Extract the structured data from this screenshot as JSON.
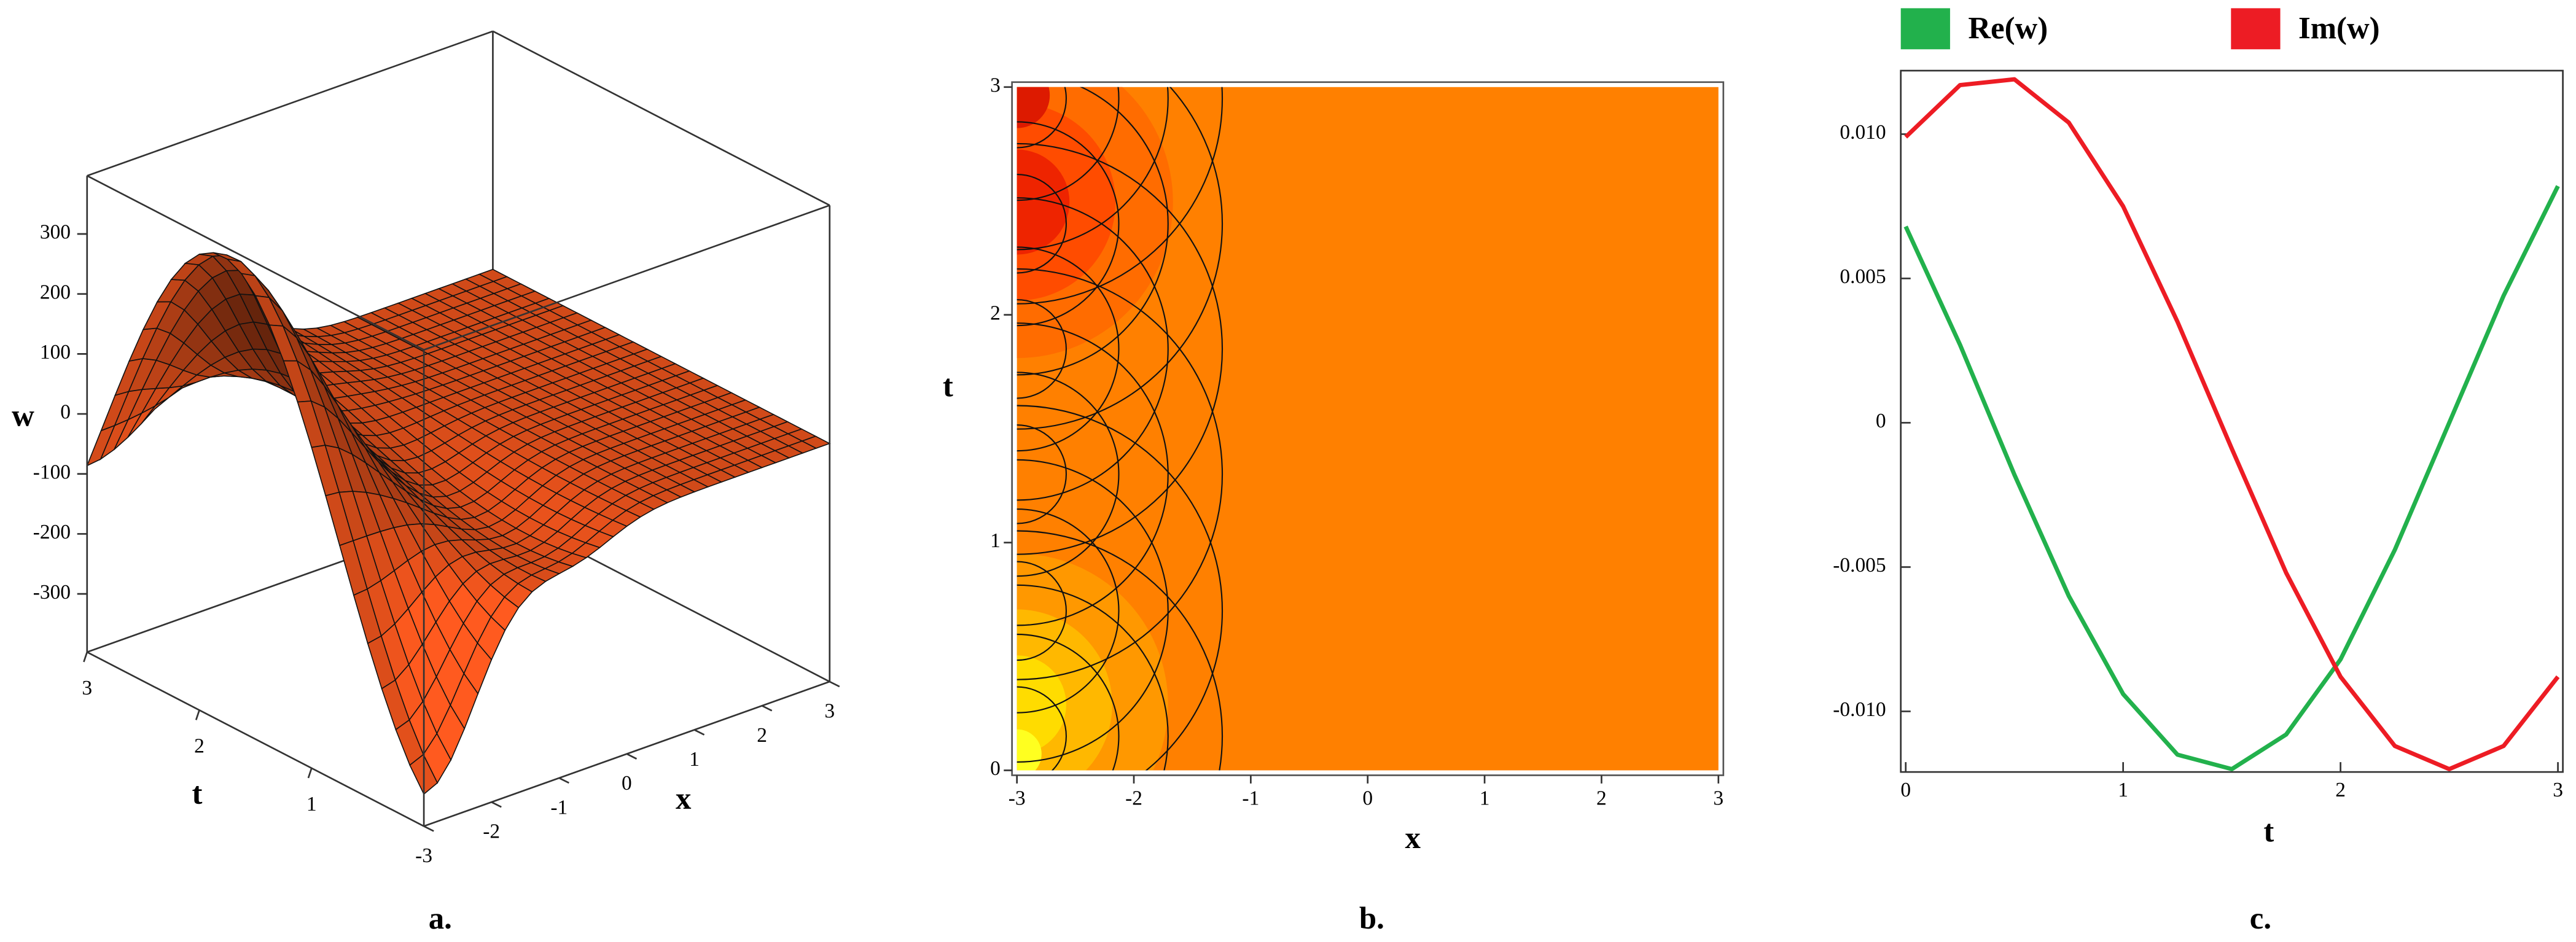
{
  "chart_data": [
    {
      "type": "surface",
      "caption": "a.",
      "xlabel": "x",
      "ylabel": "t",
      "zlabel": "w",
      "xlim": [
        -3,
        3
      ],
      "ylim": [
        0,
        3
      ],
      "zlim": [
        -397,
        397
      ],
      "xticks": [
        -3,
        -2,
        -1,
        0,
        1,
        2,
        3
      ],
      "yticks": [
        1,
        2,
        3
      ],
      "zticks": [
        -300,
        -200,
        -100,
        0,
        100,
        200,
        300
      ],
      "color": "#e8521c"
    },
    {
      "type": "contour",
      "caption": "b.",
      "xlabel": "x",
      "ylabel": "t",
      "xlim": [
        -3,
        3
      ],
      "ylim": [
        0,
        3
      ],
      "xticks": [
        -3,
        -2,
        -1,
        0,
        1,
        2,
        3
      ],
      "yticks": [
        0,
        1,
        2,
        3
      ],
      "color": "#ff8000"
    },
    {
      "type": "line",
      "caption": "c.",
      "xlabel": "t",
      "x": [
        0,
        0.25,
        0.5,
        0.75,
        1,
        1.25,
        1.5,
        1.75,
        2,
        2.25,
        2.5,
        2.75,
        3
      ],
      "series": [
        {
          "name": "Re(w)",
          "color": "#22b14c",
          "values": [
            0.0068,
            0.0027,
            -0.0018,
            -0.006,
            -0.0094,
            -0.0115,
            -0.012,
            -0.0108,
            -0.0082,
            -0.0044,
            0.0,
            0.0044,
            0.0082
          ]
        },
        {
          "name": "Im(w)",
          "color": "#ed1c24",
          "values": [
            0.0099,
            0.0117,
            0.0119,
            0.0104,
            0.0075,
            0.0035,
            -0.0009,
            -0.0052,
            -0.0088,
            -0.0112,
            -0.012,
            -0.0112,
            -0.0088
          ]
        }
      ],
      "xlim": [
        0,
        3
      ],
      "ylim": [
        -0.0121,
        0.0122
      ],
      "xticks": [
        0,
        1,
        2,
        3
      ],
      "yticks": [
        {
          "value": -0.01,
          "label": "-0.010"
        },
        -0.005,
        0,
        0.005,
        {
          "value": 0.01,
          "label": "0.010"
        }
      ]
    }
  ]
}
